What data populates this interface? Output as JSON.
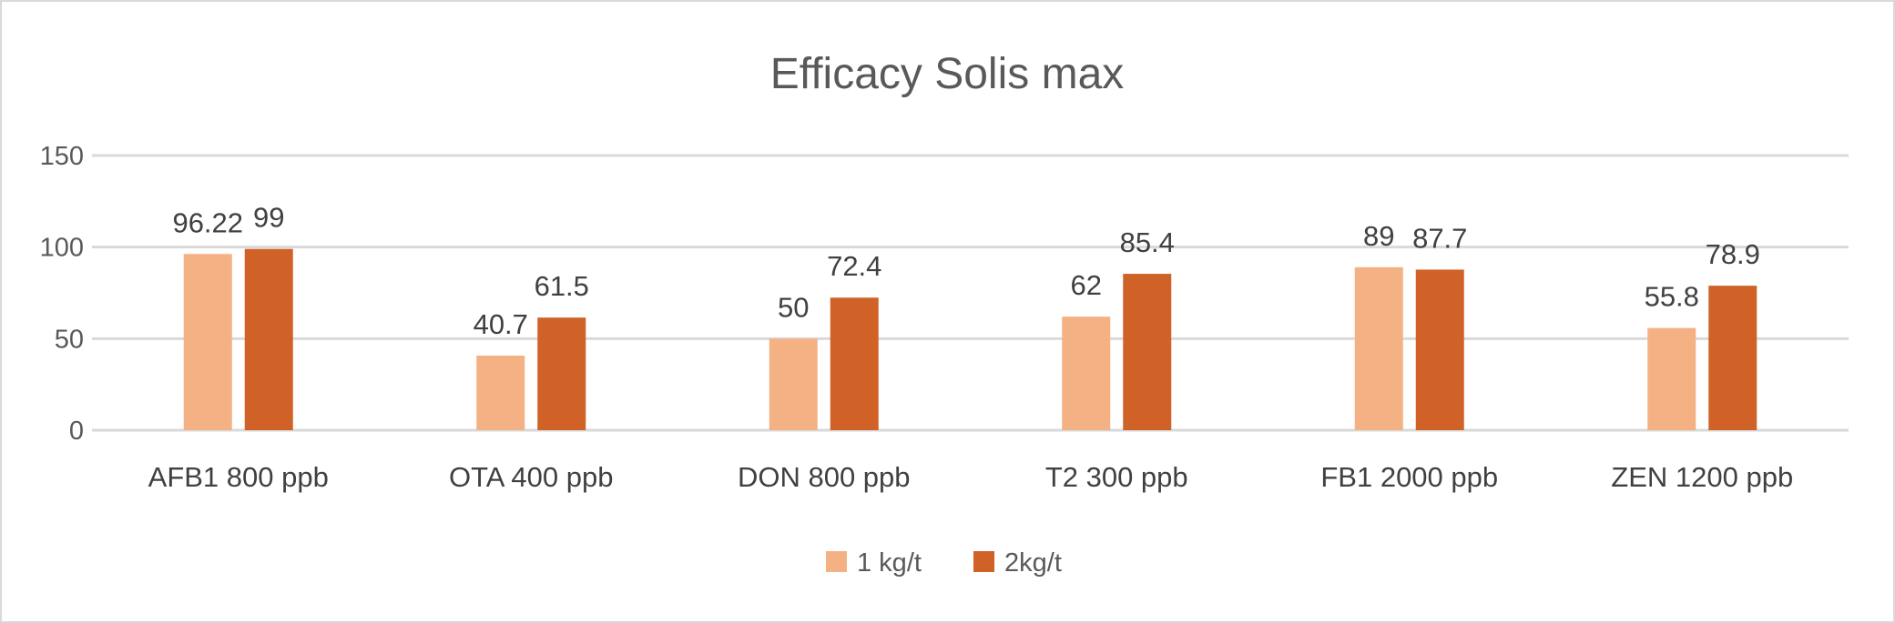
{
  "chart_data": {
    "type": "bar",
    "title": "Efficacy Solis max",
    "xlabel": "",
    "ylabel": "",
    "ylim": [
      0,
      150
    ],
    "yticks": [
      0,
      50,
      100,
      150
    ],
    "grid": true,
    "legend_placement": "bottom",
    "categories": [
      "AFB1 800 ppb",
      "OTA 400 ppb",
      "DON 800 ppb",
      "T2 300 ppb",
      "FB1 2000 ppb",
      "ZEN 1200 ppb"
    ],
    "series": [
      {
        "name": "1 kg/t",
        "color": "#F4B183",
        "values": [
          96.22,
          40.7,
          50,
          62,
          89,
          55.8
        ]
      },
      {
        "name": "2kg/t",
        "color": "#D06228",
        "values": [
          99,
          61.5,
          72.4,
          85.4,
          87.7,
          78.9
        ]
      }
    ]
  }
}
